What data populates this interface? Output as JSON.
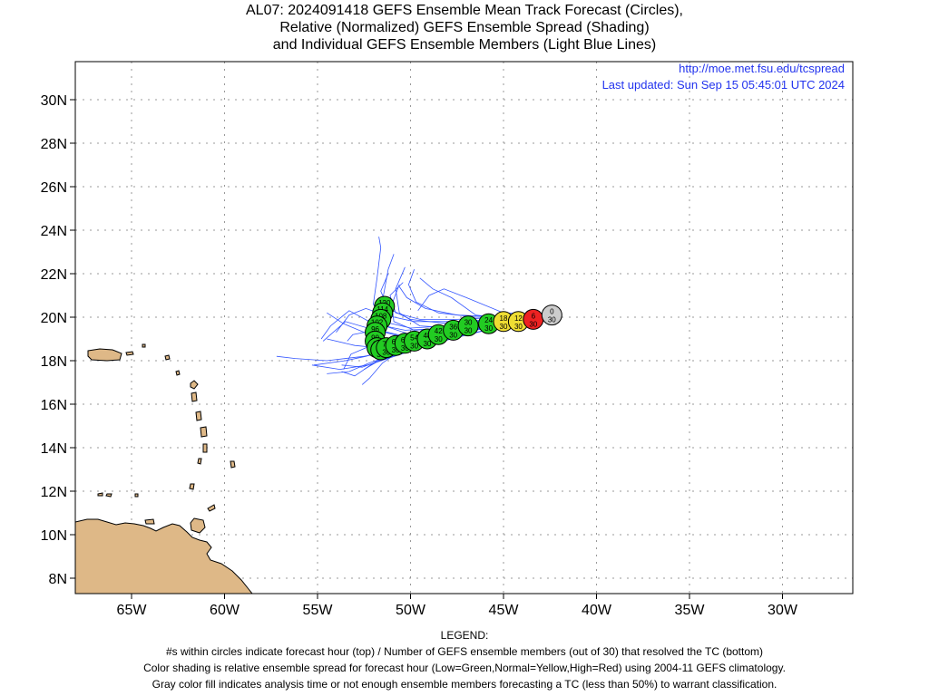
{
  "title": {
    "line1": "AL07: 2024091418 GEFS Ensemble Mean Track Forecast (Circles),",
    "line2": "Relative (Normalized) GEFS Ensemble Spread (Shading)",
    "line3": "and Individual GEFS Ensemble Members (Light Blue Lines)"
  },
  "credits": {
    "url": "http://moe.met.fsu.edu/tcspread",
    "updated": "Last updated: Sun Sep 15 05:45:01 UTC 2024"
  },
  "axes": {
    "lon_ticks": [
      "65W",
      "60W",
      "55W",
      "50W",
      "45W",
      "40W",
      "35W",
      "30W"
    ],
    "lat_ticks": [
      "30N",
      "28N",
      "26N",
      "24N",
      "22N",
      "20N",
      "18N",
      "16N",
      "14N",
      "12N",
      "10N",
      "8N"
    ]
  },
  "colors": {
    "low_spread": "#22cc22",
    "normal_spread": "#eedd33",
    "high_spread": "#ee2222",
    "analysis": "#cccccc",
    "ensemble_line": "#3355ff",
    "land": "#deb887",
    "credit_text": "#2233ee"
  },
  "track_points": [
    {
      "hour": "0",
      "members": "30",
      "lon": -42.4,
      "lat": 20.1,
      "spread": "analysis"
    },
    {
      "hour": "6",
      "members": "30",
      "lon": -43.4,
      "lat": 19.9,
      "spread": "high"
    },
    {
      "hour": "12",
      "members": "30",
      "lon": -44.2,
      "lat": 19.8,
      "spread": "normal"
    },
    {
      "hour": "18",
      "members": "30",
      "lon": -45.0,
      "lat": 19.8,
      "spread": "normal"
    },
    {
      "hour": "24",
      "members": "30",
      "lon": -45.8,
      "lat": 19.7,
      "spread": "low"
    },
    {
      "hour": "30",
      "members": "30",
      "lon": -46.9,
      "lat": 19.6,
      "spread": "low"
    },
    {
      "hour": "36",
      "members": "30",
      "lon": -47.7,
      "lat": 19.4,
      "spread": "low"
    },
    {
      "hour": "42",
      "members": "30",
      "lon": -48.5,
      "lat": 19.2,
      "spread": "low"
    },
    {
      "hour": "48",
      "members": "30",
      "lon": -49.1,
      "lat": 19.0,
      "spread": "low"
    },
    {
      "hour": "54",
      "members": "30",
      "lon": -49.8,
      "lat": 18.9,
      "spread": "low"
    },
    {
      "hour": "60",
      "members": "30",
      "lon": -50.3,
      "lat": 18.8,
      "spread": "low"
    },
    {
      "hour": "66",
      "members": "30",
      "lon": -50.8,
      "lat": 18.7,
      "spread": "low"
    },
    {
      "hour": "72",
      "members": "30",
      "lon": -51.3,
      "lat": 18.6,
      "spread": "low"
    },
    {
      "hour": "78",
      "members": "30",
      "lon": -51.6,
      "lat": 18.5,
      "spread": "low"
    },
    {
      "hour": "84",
      "members": "30",
      "lon": -51.8,
      "lat": 18.6,
      "spread": "low"
    },
    {
      "hour": "90",
      "members": "30",
      "lon": -51.9,
      "lat": 18.9,
      "spread": "low"
    },
    {
      "hour": "96",
      "members": "30",
      "lon": -51.9,
      "lat": 19.3,
      "spread": "low"
    },
    {
      "hour": "102",
      "members": "30",
      "lon": -51.8,
      "lat": 19.6,
      "spread": "low"
    },
    {
      "hour": "108",
      "members": "28",
      "lon": -51.6,
      "lat": 19.9,
      "spread": "low"
    },
    {
      "hour": "114",
      "members": "28",
      "lon": -51.5,
      "lat": 20.2,
      "spread": "low"
    },
    {
      "hour": "120",
      "members": "28",
      "lon": -51.4,
      "lat": 20.5,
      "spread": "low"
    }
  ],
  "legend": {
    "heading": "LEGEND:",
    "line1": "#s within circles indicate forecast hour (top) / Number of GEFS ensemble members (out of 30) that resolved the TC (bottom)",
    "line2": "Color shading is relative ensemble spread for forecast hour (Low=Green,Normal=Yellow,High=Red) using 2004-11 GEFS climatology.",
    "line3": "Gray color fill indicates analysis time or not enough ensemble members forecasting a TC (less than 50%) to warrant classification."
  }
}
